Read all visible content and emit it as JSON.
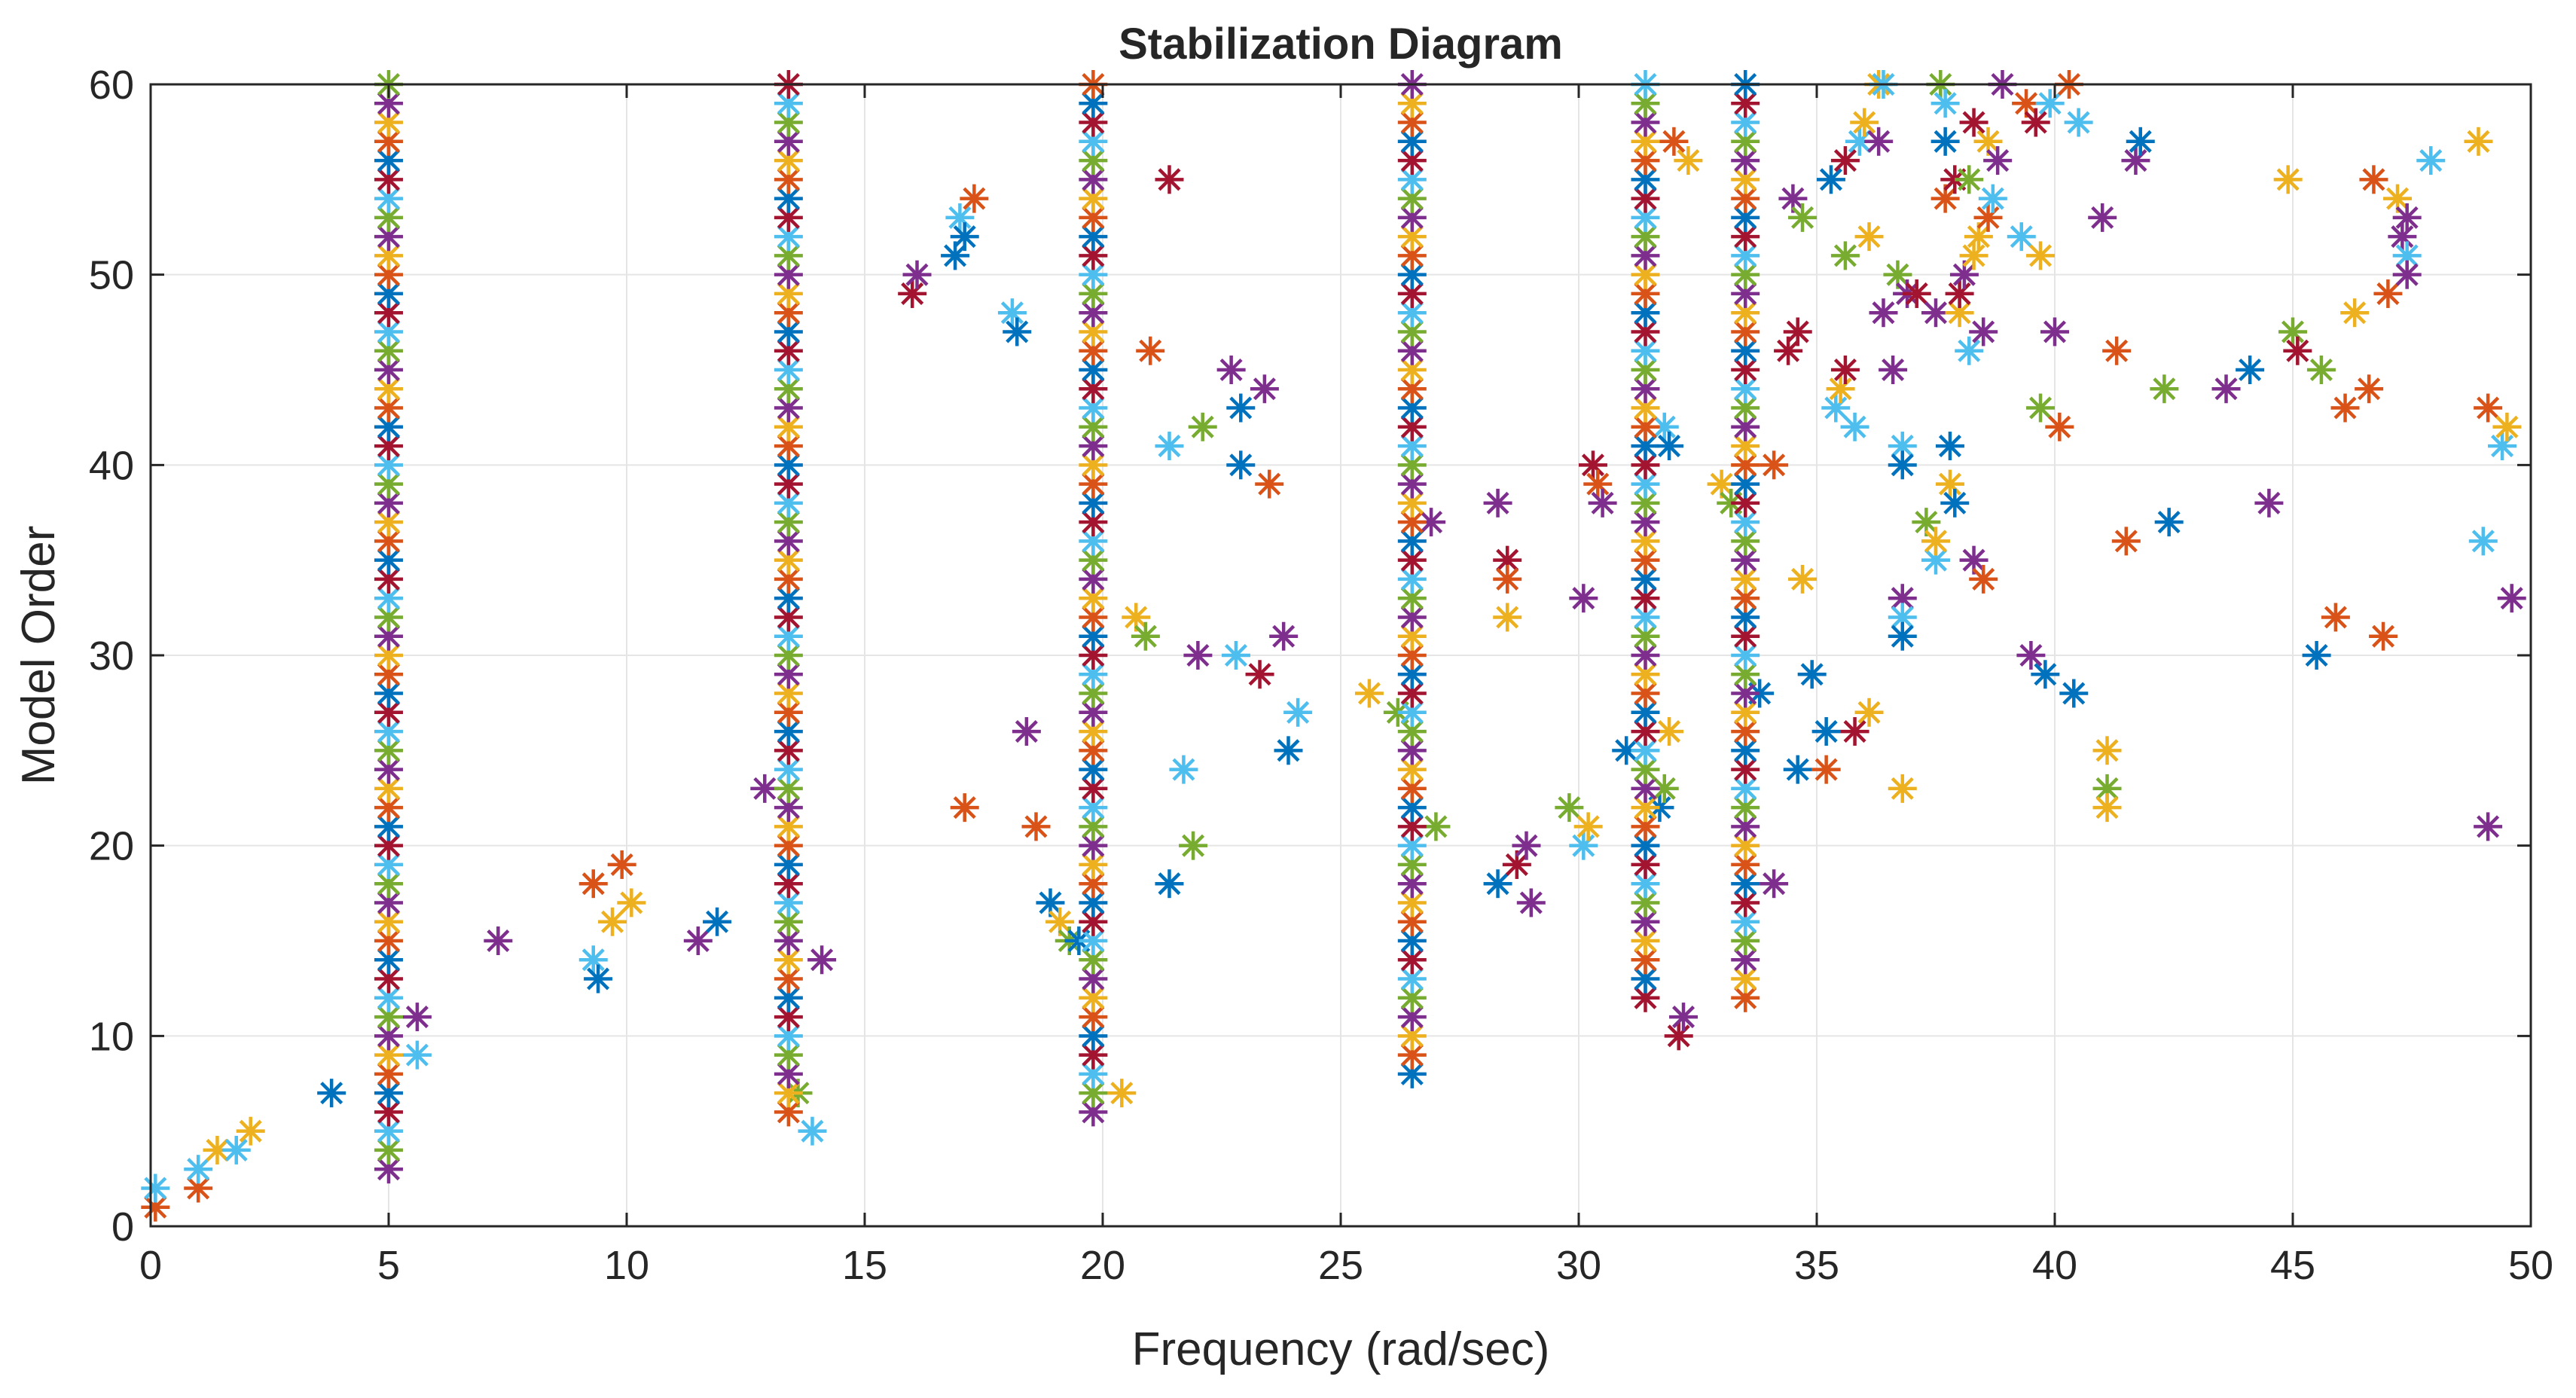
{
  "chart_data": {
    "type": "scatter",
    "title": "Stabilization Diagram",
    "xlabel": "Frequency (rad/sec)",
    "ylabel": "Model Order",
    "xlim": [
      0,
      50
    ],
    "ylim": [
      0,
      60
    ],
    "xticks": [
      0,
      5,
      10,
      15,
      20,
      25,
      30,
      35,
      40,
      45,
      50
    ],
    "yticks": [
      0,
      10,
      20,
      30,
      40,
      50,
      60
    ],
    "grid": true,
    "marker": "asterisk",
    "colors": [
      "#0072BD",
      "#D95319",
      "#EDB120",
      "#7E2F8E",
      "#77AC30",
      "#4DBEEE",
      "#A2142F"
    ],
    "stable_columns": [
      {
        "frequency": 5.0,
        "order_range": [
          3,
          60
        ]
      },
      {
        "frequency": 13.4,
        "order_range": [
          6,
          60
        ]
      },
      {
        "frequency": 19.8,
        "order_range": [
          6,
          60
        ]
      },
      {
        "frequency": 26.5,
        "order_range": [
          8,
          60
        ]
      },
      {
        "frequency": 31.4,
        "order_range": [
          12,
          60
        ]
      },
      {
        "frequency": 33.5,
        "order_range": [
          12,
          60
        ]
      }
    ],
    "points": [
      [
        0.1,
        1
      ],
      [
        0.1,
        2
      ],
      [
        1.0,
        2
      ],
      [
        1.0,
        3
      ],
      [
        1.4,
        4
      ],
      [
        1.8,
        4
      ],
      [
        2.1,
        5
      ],
      [
        3.8,
        7
      ],
      [
        5.6,
        9
      ],
      [
        5.6,
        11
      ],
      [
        7.3,
        15
      ],
      [
        9.3,
        14
      ],
      [
        9.4,
        13
      ],
      [
        9.3,
        18
      ],
      [
        9.7,
        16
      ],
      [
        9.9,
        19
      ],
      [
        10.1,
        17
      ],
      [
        11.5,
        15
      ],
      [
        11.9,
        16
      ],
      [
        12.9,
        23
      ],
      [
        13.6,
        7
      ],
      [
        13.9,
        5
      ],
      [
        14.1,
        14
      ],
      [
        16.0,
        49
      ],
      [
        16.1,
        50
      ],
      [
        16.9,
        51
      ],
      [
        17.0,
        53
      ],
      [
        17.1,
        52
      ],
      [
        17.1,
        22
      ],
      [
        17.3,
        54
      ],
      [
        18.1,
        48
      ],
      [
        18.2,
        47
      ],
      [
        18.4,
        26
      ],
      [
        18.6,
        21
      ],
      [
        18.9,
        17
      ],
      [
        19.1,
        16
      ],
      [
        19.3,
        15
      ],
      [
        19.5,
        15
      ],
      [
        20.4,
        7
      ],
      [
        20.7,
        32
      ],
      [
        20.9,
        31
      ],
      [
        21.0,
        46
      ],
      [
        21.4,
        55
      ],
      [
        21.4,
        18
      ],
      [
        21.4,
        41
      ],
      [
        21.7,
        24
      ],
      [
        21.9,
        20
      ],
      [
        22.0,
        30
      ],
      [
        22.1,
        42
      ],
      [
        22.7,
        45
      ],
      [
        22.8,
        30
      ],
      [
        22.9,
        43
      ],
      [
        22.9,
        40
      ],
      [
        23.3,
        29
      ],
      [
        23.4,
        44
      ],
      [
        23.5,
        39
      ],
      [
        23.8,
        31
      ],
      [
        23.9,
        25
      ],
      [
        24.1,
        27
      ],
      [
        25.6,
        28
      ],
      [
        26.2,
        27
      ],
      [
        26.9,
        37
      ],
      [
        27.0,
        21
      ],
      [
        28.3,
        38
      ],
      [
        28.3,
        18
      ],
      [
        28.5,
        35
      ],
      [
        28.5,
        34
      ],
      [
        28.5,
        32
      ],
      [
        28.7,
        19
      ],
      [
        28.9,
        20
      ],
      [
        29.0,
        17
      ],
      [
        29.8,
        22
      ],
      [
        30.1,
        20
      ],
      [
        30.2,
        21
      ],
      [
        30.1,
        33
      ],
      [
        30.3,
        40
      ],
      [
        30.4,
        39
      ],
      [
        30.5,
        38
      ],
      [
        31.0,
        25
      ],
      [
        31.7,
        22
      ],
      [
        31.8,
        23
      ],
      [
        31.8,
        42
      ],
      [
        31.9,
        41
      ],
      [
        31.9,
        26
      ],
      [
        32.0,
        57
      ],
      [
        32.1,
        10
      ],
      [
        32.2,
        11
      ],
      [
        32.3,
        56
      ],
      [
        33.0,
        39
      ],
      [
        33.2,
        38
      ],
      [
        33.5,
        40
      ],
      [
        33.8,
        28
      ],
      [
        34.1,
        40
      ],
      [
        34.1,
        18
      ],
      [
        34.4,
        46
      ],
      [
        34.5,
        54
      ],
      [
        34.6,
        47
      ],
      [
        34.6,
        24
      ],
      [
        34.7,
        53
      ],
      [
        34.7,
        34
      ],
      [
        34.9,
        29
      ],
      [
        35.2,
        26
      ],
      [
        35.2,
        24
      ],
      [
        35.3,
        55
      ],
      [
        35.4,
        43
      ],
      [
        35.5,
        44
      ],
      [
        35.6,
        45
      ],
      [
        35.6,
        56
      ],
      [
        35.6,
        51
      ],
      [
        35.8,
        42
      ],
      [
        35.8,
        26
      ],
      [
        35.9,
        57
      ],
      [
        36.0,
        58
      ],
      [
        36.1,
        27
      ],
      [
        36.1,
        52
      ],
      [
        36.3,
        57
      ],
      [
        36.3,
        60
      ],
      [
        36.4,
        60
      ],
      [
        36.4,
        48
      ],
      [
        36.6,
        45
      ],
      [
        36.7,
        50
      ],
      [
        36.8,
        41
      ],
      [
        36.8,
        40
      ],
      [
        36.8,
        33
      ],
      [
        36.8,
        32
      ],
      [
        36.8,
        31
      ],
      [
        36.8,
        23
      ],
      [
        36.9,
        49
      ],
      [
        37.1,
        49
      ],
      [
        37.3,
        37
      ],
      [
        37.5,
        35
      ],
      [
        37.5,
        36
      ],
      [
        37.5,
        48
      ],
      [
        37.6,
        60
      ],
      [
        37.7,
        54
      ],
      [
        37.7,
        57
      ],
      [
        37.7,
        59
      ],
      [
        37.8,
        39
      ],
      [
        37.8,
        41
      ],
      [
        37.9,
        38
      ],
      [
        37.9,
        55
      ],
      [
        38.0,
        48
      ],
      [
        38.0,
        49
      ],
      [
        38.1,
        50
      ],
      [
        38.2,
        55
      ],
      [
        38.2,
        46
      ],
      [
        38.3,
        58
      ],
      [
        38.3,
        51
      ],
      [
        38.3,
        35
      ],
      [
        38.4,
        52
      ],
      [
        38.5,
        34
      ],
      [
        38.5,
        47
      ],
      [
        38.6,
        57
      ],
      [
        38.6,
        53
      ],
      [
        38.7,
        54
      ],
      [
        38.8,
        56
      ],
      [
        38.9,
        60
      ],
      [
        39.3,
        52
      ],
      [
        39.4,
        59
      ],
      [
        39.5,
        30
      ],
      [
        39.6,
        58
      ],
      [
        39.7,
        51
      ],
      [
        39.7,
        43
      ],
      [
        39.8,
        29
      ],
      [
        39.9,
        59
      ],
      [
        40.0,
        47
      ],
      [
        40.1,
        42
      ],
      [
        40.3,
        60
      ],
      [
        40.4,
        28
      ],
      [
        40.5,
        58
      ],
      [
        41.0,
        53
      ],
      [
        41.1,
        23
      ],
      [
        41.1,
        25
      ],
      [
        41.1,
        22
      ],
      [
        41.3,
        46
      ],
      [
        41.5,
        36
      ],
      [
        41.7,
        56
      ],
      [
        41.8,
        57
      ],
      [
        42.3,
        44
      ],
      [
        42.4,
        37
      ],
      [
        43.6,
        44
      ],
      [
        44.1,
        45
      ],
      [
        44.5,
        38
      ],
      [
        44.9,
        55
      ],
      [
        45.0,
        47
      ],
      [
        45.1,
        46
      ],
      [
        45.5,
        30
      ],
      [
        45.6,
        45
      ],
      [
        45.9,
        32
      ],
      [
        46.1,
        43
      ],
      [
        46.3,
        48
      ],
      [
        46.6,
        44
      ],
      [
        46.7,
        55
      ],
      [
        46.9,
        31
      ],
      [
        47.0,
        49
      ],
      [
        47.2,
        54
      ],
      [
        47.3,
        52
      ],
      [
        47.4,
        51
      ],
      [
        47.4,
        53
      ],
      [
        47.4,
        50
      ],
      [
        47.9,
        56
      ],
      [
        48.9,
        57
      ],
      [
        49.0,
        36
      ],
      [
        49.1,
        43
      ],
      [
        49.1,
        21
      ],
      [
        49.4,
        41
      ],
      [
        49.5,
        42
      ],
      [
        49.6,
        33
      ]
    ]
  }
}
